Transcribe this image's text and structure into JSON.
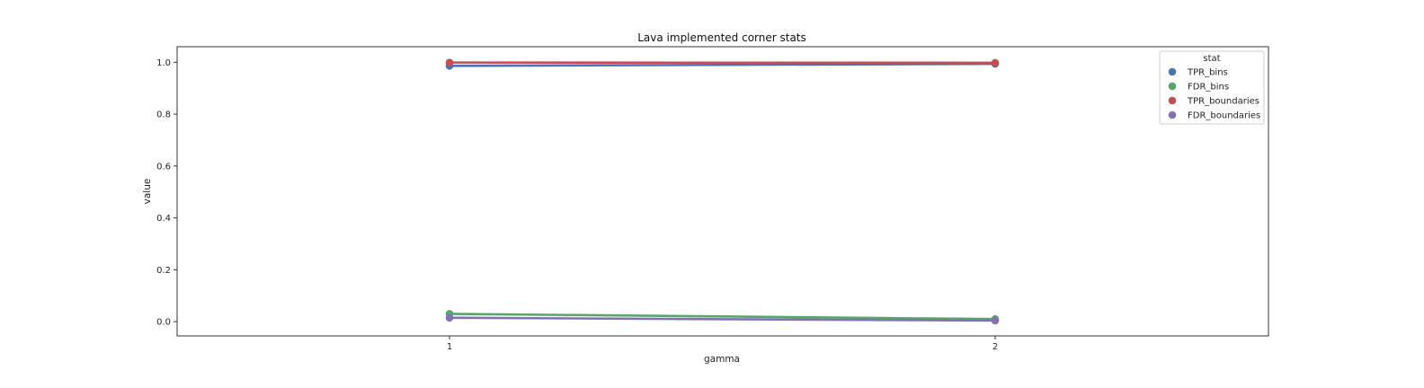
{
  "chart_data": {
    "type": "line",
    "title": "Lava implemented corner stats",
    "xlabel": "gamma",
    "ylabel": "value",
    "categories": [
      "1",
      "2"
    ],
    "ylim": [
      -0.055,
      1.06
    ],
    "yticks": [
      0.0,
      0.2,
      0.4,
      0.6,
      0.8,
      1.0
    ],
    "ytick_labels": [
      "0.0",
      "0.2",
      "0.4",
      "0.6",
      "0.8",
      "1.0"
    ],
    "legend": {
      "title": "stat",
      "placement": "top-right"
    },
    "grid": false,
    "series": [
      {
        "name": "TPR_bins",
        "color": "#4c72b0",
        "values": [
          0.986,
          0.994
        ]
      },
      {
        "name": "FDR_bins",
        "color": "#55a868",
        "values": [
          0.03,
          0.01
        ]
      },
      {
        "name": "TPR_boundaries",
        "color": "#c44e52",
        "values": [
          0.999,
          0.998
        ]
      },
      {
        "name": "FDR_boundaries",
        "color": "#8172b2",
        "values": [
          0.015,
          0.004
        ]
      }
    ]
  }
}
